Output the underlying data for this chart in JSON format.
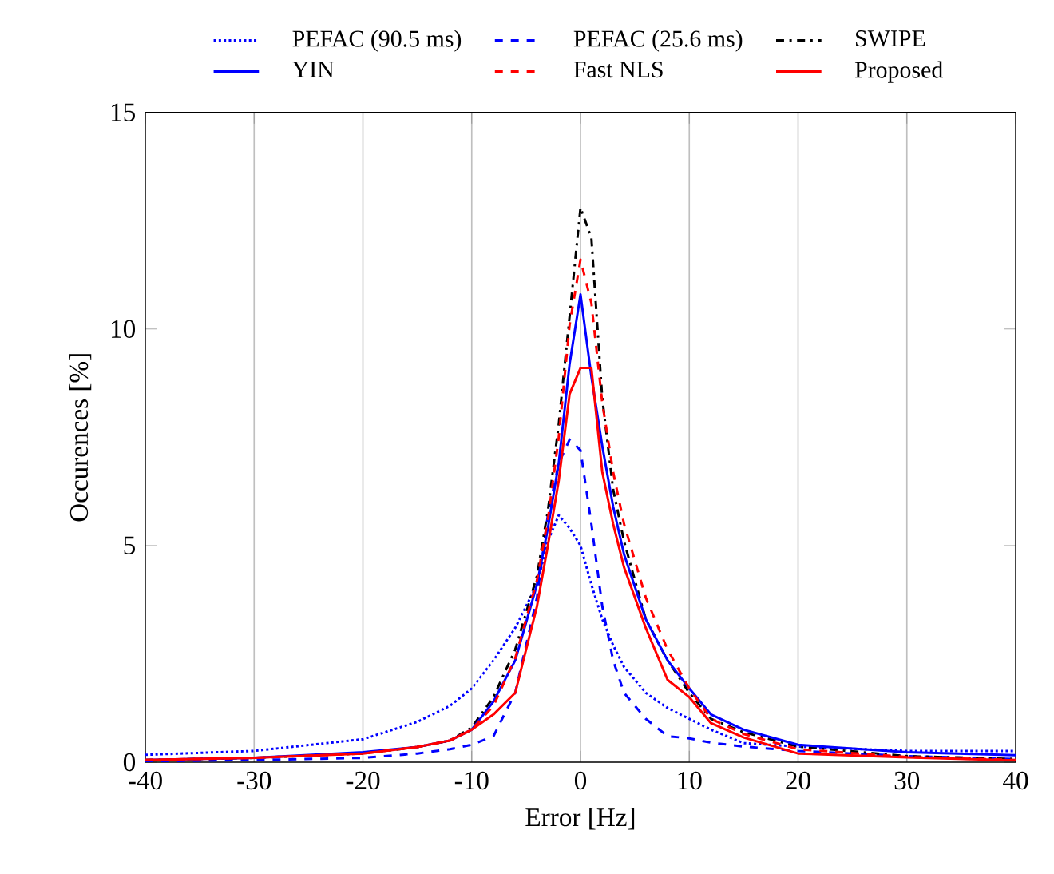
{
  "chart_data": {
    "type": "line",
    "xlabel": "Error [Hz]",
    "ylabel": "Occurences [%]",
    "xlim": [
      -40,
      40
    ],
    "ylim": [
      0,
      15
    ],
    "xticks": [
      -40,
      -30,
      -20,
      -10,
      0,
      10,
      20,
      30,
      40
    ],
    "yticks": [
      0,
      5,
      10,
      15
    ],
    "grid": "x",
    "legend": "top",
    "marker": "none",
    "x": [
      -40,
      -30,
      -20,
      -15,
      -12,
      -10,
      -8,
      -6,
      -4,
      -3,
      -2,
      -1,
      0,
      1,
      2,
      3,
      4,
      6,
      8,
      10,
      12,
      15,
      20,
      30,
      40
    ],
    "series": [
      {
        "name": "PEFAC (90.5 ms)",
        "color": "#0000ff",
        "line_style": "dotted",
        "values": [
          0.17,
          0.26,
          0.53,
          0.93,
          1.3,
          1.7,
          2.35,
          3.1,
          4.1,
          5.1,
          5.7,
          5.4,
          5.0,
          4.1,
          3.3,
          2.7,
          2.2,
          1.6,
          1.25,
          1.0,
          0.75,
          0.44,
          0.36,
          0.26,
          0.26
        ]
      },
      {
        "name": "PEFAC (25.6 ms)",
        "color": "#0000ff",
        "line_style": "dashed",
        "values": [
          0.02,
          0.05,
          0.1,
          0.2,
          0.3,
          0.4,
          0.6,
          1.6,
          3.8,
          5.7,
          6.9,
          7.45,
          7.2,
          5.5,
          3.6,
          2.35,
          1.6,
          1.0,
          0.6,
          0.55,
          0.45,
          0.36,
          0.26,
          0.14,
          0.07
        ]
      },
      {
        "name": "SWIPE",
        "color": "#000000",
        "line_style": "dashdot",
        "values": [
          0.05,
          0.1,
          0.2,
          0.35,
          0.5,
          0.8,
          1.5,
          2.6,
          4.3,
          5.8,
          7.8,
          10.3,
          12.8,
          12.1,
          8.4,
          6.3,
          5.1,
          3.3,
          2.35,
          1.6,
          1.0,
          0.69,
          0.36,
          0.14,
          0.07
        ]
      },
      {
        "name": "YIN",
        "color": "#0000ff",
        "line_style": "solid",
        "values": [
          0.05,
          0.1,
          0.23,
          0.35,
          0.5,
          0.75,
          1.4,
          2.35,
          4.1,
          5.4,
          6.9,
          9.2,
          10.8,
          8.9,
          7.3,
          5.9,
          4.8,
          3.3,
          2.35,
          1.7,
          1.1,
          0.75,
          0.4,
          0.23,
          0.16
        ]
      },
      {
        "name": "Fast NLS",
        "color": "#ff0000",
        "line_style": "dashed",
        "values": [
          0.05,
          0.1,
          0.2,
          0.35,
          0.5,
          0.75,
          1.3,
          2.4,
          4.2,
          5.6,
          7.5,
          10.1,
          11.6,
          10.6,
          8.3,
          6.7,
          5.5,
          3.8,
          2.6,
          1.7,
          1.0,
          0.65,
          0.3,
          0.12,
          0.05
        ]
      },
      {
        "name": "Proposed",
        "color": "#ff0000",
        "line_style": "solid",
        "values": [
          0.05,
          0.1,
          0.2,
          0.35,
          0.5,
          0.75,
          1.1,
          1.6,
          3.6,
          5.0,
          6.5,
          8.5,
          9.1,
          9.1,
          6.7,
          5.5,
          4.5,
          3.1,
          1.9,
          1.5,
          0.9,
          0.57,
          0.2,
          0.11,
          0.04
        ]
      }
    ]
  }
}
